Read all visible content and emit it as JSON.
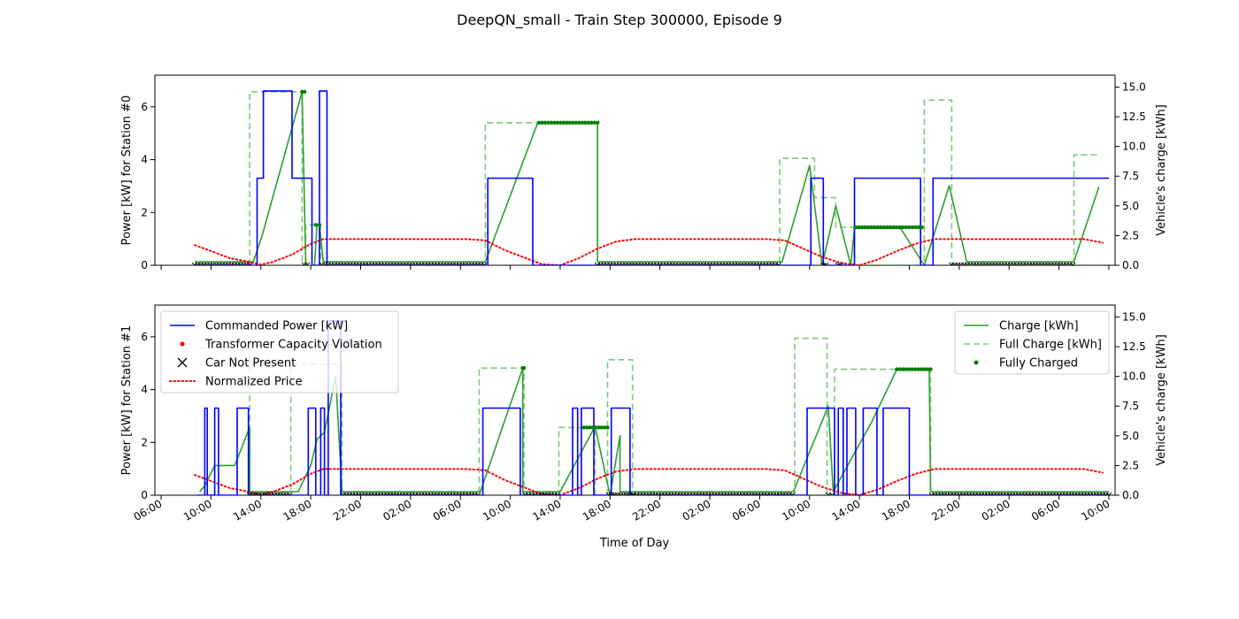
{
  "figure": {
    "title": "DeepQN_small - Train Step 300000, Episode 9",
    "xlabel": "Time of Day"
  },
  "chart_data": [
    {
      "type": "line",
      "ylabel": "Power [kW] for Station #0",
      "ylabel_right": "Vehicle's charge [kWh]",
      "ylim": [
        0,
        7.2
      ],
      "ylim_right": [
        0,
        16
      ],
      "yticks": [
        0,
        2,
        4,
        6
      ],
      "yticks_right": [
        0,
        2.5,
        5.0,
        7.5,
        10.0,
        12.5,
        15.0
      ],
      "x_unit": "hours since 06:00 of day 1",
      "xlim": [
        -0.5,
        76.5
      ],
      "xticks": [
        0,
        4,
        8,
        12,
        16,
        20,
        24,
        28,
        32,
        36,
        40,
        44,
        48,
        52,
        56,
        60,
        64,
        68,
        72,
        76
      ],
      "xtick_labels": [
        "06:00",
        "10:00",
        "14:00",
        "18:00",
        "22:00",
        "02:00",
        "06:00",
        "10:00",
        "14:00",
        "18:00",
        "22:00",
        "02:00",
        "06:00",
        "10:00",
        "14:00",
        "18:00",
        "22:00",
        "02:00",
        "06:00",
        "10:00"
      ],
      "series": [
        {
          "name": "Commanded Power [kW]",
          "axis": "left",
          "color": "#0000ff",
          "style": "solid",
          "step": true,
          "x": [
            2.7,
            7.3,
            7.7,
            8.2,
            9.5,
            10.5,
            11.5,
            12.1,
            12.2,
            12.4,
            12.7,
            12.9,
            13.3,
            13.6,
            26.2,
            29.8,
            52.1,
            53.1,
            55.6,
            56.0,
            56.6,
            60.9,
            61.9,
            63.9,
            76.0
          ],
          "y": [
            0,
            0,
            3.3,
            6.6,
            6.6,
            3.3,
            3.3,
            0,
            0,
            0,
            6.6,
            6.6,
            0,
            0,
            3.3,
            0,
            3.3,
            0,
            3.3,
            3.3,
            3.3,
            0,
            3.3,
            3.3,
            3.3
          ]
        },
        {
          "name": "Charge [kWh]",
          "axis": "right",
          "color": "#2ca02c",
          "style": "solid",
          "x": [
            2.7,
            7.4,
            8.1,
            11.3,
            11.3,
            11.6,
            12.3,
            12.5,
            12.7,
            13.0,
            26.0,
            30.2,
            35.0,
            35.0,
            49.8,
            52.0,
            53.0,
            54.1,
            55.3,
            55.6,
            55.6,
            59.3,
            61.2,
            63.2,
            64.6,
            73.2,
            75.2
          ],
          "y": [
            0.3,
            0.3,
            2.5,
            14.6,
            14.6,
            0,
            0,
            3.4,
            3.4,
            0.3,
            0.3,
            12,
            12,
            0.3,
            0.3,
            8.4,
            0,
            5.0,
            0,
            3.1,
            3.1,
            3.1,
            0,
            6.7,
            0.3,
            0.3,
            6.6
          ]
        },
        {
          "name": "Full Charge [kWh]",
          "axis": "right",
          "color": "#2ca02c",
          "style": "dashed",
          "alpha": 0.6,
          "x": [
            7.1,
            7.1,
            11.3,
            11.3,
            11.6,
            11.6,
            12.8,
            12.8,
            26.0,
            26.0,
            35.0,
            35.0,
            49.6,
            49.6,
            52.4,
            52.4,
            54.1,
            54.1,
            55.6,
            55.6,
            61.2,
            61.2,
            63.4,
            63.4,
            73.2,
            73.2,
            75.3
          ],
          "y": [
            0,
            14.6,
            14.6,
            0,
            0,
            3.4,
            3.4,
            0,
            0,
            12,
            12,
            0,
            0,
            9.0,
            9.0,
            5.7,
            5.7,
            3.2,
            3.2,
            0,
            0,
            13.9,
            13.9,
            0,
            0,
            9.3,
            9.3
          ]
        },
        {
          "name": "Fully Charged",
          "axis": "right",
          "color": "#008000",
          "style": "dots",
          "segments": [
            [
              11.3,
              11.5,
              14.6
            ],
            [
              12.4,
              12.7,
              3.4
            ],
            [
              30.3,
              35.0,
              12.0
            ],
            [
              55.7,
              61.0,
              3.2
            ]
          ]
        },
        {
          "name": "Car Not Present",
          "axis": "right",
          "color": "#000000",
          "style": "x",
          "segments": [
            [
              2.7,
              7.1,
              0
            ],
            [
              11.5,
              11.7,
              0
            ],
            [
              12.9,
              25.9,
              0
            ],
            [
              35.0,
              49.5,
              0
            ],
            [
              53.1,
              53.3,
              0
            ],
            [
              54.3,
              54.5,
              0
            ],
            [
              63.4,
              73.1,
              0
            ]
          ]
        },
        {
          "name": "Normalized Price",
          "axis": "right",
          "color": "#ff0000",
          "style": "dotted",
          "dotted_line": true,
          "x": [
            2.7,
            4.0,
            5.5,
            7.0,
            8.0,
            9.0,
            10.5,
            12.0,
            13.0,
            24.5,
            26.0,
            27.5,
            29.0,
            30.5,
            32.0,
            33.5,
            35.0,
            36.5,
            38.0,
            48.5,
            50.0,
            51.5,
            53.0,
            54.5,
            56.0,
            57.5,
            59.0,
            60.5,
            62.0,
            74.0,
            75.5
          ],
          "y": [
            1.7,
            1.2,
            0.6,
            0.3,
            0.05,
            0.3,
            0.9,
            1.8,
            2.2,
            2.2,
            2.1,
            1.3,
            0.7,
            0.1,
            0,
            0.6,
            1.4,
            2.0,
            2.2,
            2.2,
            2.1,
            1.4,
            0.7,
            0.2,
            0,
            0.5,
            1.2,
            1.8,
            2.2,
            2.2,
            1.9
          ]
        }
      ]
    },
    {
      "type": "line",
      "ylabel": "Power [kW] for Station #1",
      "ylabel_right": "Vehicle's charge [kWh]",
      "ylim": [
        0,
        7.2
      ],
      "ylim_right": [
        0,
        16
      ],
      "yticks": [
        0,
        2,
        4,
        6
      ],
      "yticks_right": [
        0,
        2.5,
        5.0,
        7.5,
        10.0,
        12.5,
        15.0
      ],
      "x_unit": "hours since 06:00 of day 1",
      "xlim": [
        -0.5,
        76.5
      ],
      "xticks": [
        0,
        4,
        8,
        12,
        16,
        20,
        24,
        28,
        32,
        36,
        40,
        44,
        48,
        52,
        56,
        60,
        64,
        68,
        72,
        76
      ],
      "xtick_labels": [
        "06:00",
        "10:00",
        "14:00",
        "18:00",
        "22:00",
        "02:00",
        "06:00",
        "10:00",
        "14:00",
        "18:00",
        "22:00",
        "02:00",
        "06:00",
        "10:00",
        "14:00",
        "18:00",
        "22:00",
        "02:00",
        "06:00",
        "10:00"
      ],
      "series": [
        {
          "name": "Commanded Power [kW]",
          "axis": "left",
          "color": "#0000ff",
          "style": "solid",
          "step": true,
          "x": [
            2.9,
            3.5,
            3.7,
            4.0,
            4.3,
            4.6,
            6.0,
            6.1,
            7.0,
            11.2,
            11.8,
            12.4,
            12.6,
            12.8,
            13.1,
            13.4,
            14.4,
            25.8,
            28.8,
            32.7,
            33.0,
            33.4,
            33.7,
            34.7,
            36.1,
            37.6,
            51.8,
            54.0,
            54.3,
            54.7,
            55.0,
            55.7,
            56.3,
            57.4,
            57.9,
            59.1,
            60.0,
            76.0
          ],
          "y": [
            0,
            3.3,
            0,
            0,
            3.3,
            0,
            0,
            3.3,
            0,
            0,
            3.3,
            0,
            0,
            3.3,
            0,
            6.6,
            0,
            3.3,
            0,
            0,
            3.3,
            0,
            3.3,
            0,
            3.3,
            0,
            3.3,
            0,
            3.3,
            0,
            3.3,
            0,
            3.3,
            0,
            3.3,
            3.3,
            0,
            0
          ]
        },
        {
          "name": "Charge [kWh]",
          "axis": "right",
          "color": "#2ca02c",
          "style": "solid",
          "x": [
            3.1,
            3.5,
            4.3,
            5.9,
            7.1,
            7.1,
            11.0,
            12.0,
            12.5,
            13.1,
            14.0,
            14.5,
            25.6,
            29.0,
            29.0,
            32.0,
            34.8,
            36.0,
            36.8,
            36.8,
            50.7,
            53.5,
            53.9,
            57.0,
            59.0,
            61.6,
            61.7,
            76.0
          ],
          "y": [
            0.3,
            0.8,
            2.5,
            2.5,
            5.7,
            0.3,
            0.3,
            2.5,
            4.7,
            5.3,
            10.0,
            0.3,
            0.3,
            10.7,
            0.3,
            0.3,
            5.8,
            0,
            5.0,
            0.3,
            0.3,
            7.5,
            0.3,
            6.2,
            10.6,
            10.6,
            0.3,
            0.3
          ]
        },
        {
          "name": "Full Charge [kWh]",
          "axis": "right",
          "color": "#2ca02c",
          "style": "dashed",
          "alpha": 0.6,
          "x": [
            3.1,
            7.1,
            7.1,
            10.4,
            10.4,
            14.5,
            14.5,
            25.5,
            25.5,
            29.1,
            29.1,
            31.9,
            31.9,
            34.8,
            34.8,
            35.8,
            35.8,
            37.8,
            37.8,
            50.8,
            50.8,
            53.4,
            53.4,
            54.0,
            54.0,
            61.7,
            61.7,
            76.0
          ],
          "y": [
            12.4,
            12.4,
            0,
            0,
            11.0,
            11.0,
            0,
            0,
            10.7,
            10.7,
            0,
            0,
            5.7,
            5.7,
            0,
            0,
            11.4,
            11.4,
            0,
            0,
            13.2,
            13.2,
            0,
            0,
            10.6,
            10.6,
            0,
            0
          ]
        },
        {
          "name": "Fully Charged",
          "axis": "right",
          "color": "#008000",
          "style": "dots",
          "segments": [
            [
              29.0,
              29.1,
              10.7
            ],
            [
              33.9,
              35.8,
              5.7
            ],
            [
              59.0,
              61.7,
              10.6
            ]
          ]
        },
        {
          "name": "Car Not Present",
          "axis": "right",
          "color": "#000000",
          "style": "x",
          "segments": [
            [
              7.1,
              10.3,
              0
            ],
            [
              14.6,
              25.4,
              0
            ],
            [
              29.2,
              31.8,
              0
            ],
            [
              35.9,
              37.8,
              0
            ],
            [
              37.9,
              50.6,
              0
            ],
            [
              53.5,
              53.8,
              0
            ],
            [
              61.8,
              76.0,
              0
            ]
          ]
        },
        {
          "name": "Normalized Price",
          "axis": "right",
          "color": "#ff0000",
          "style": "dotted",
          "dotted_line": true,
          "x": [
            2.7,
            4.0,
            5.5,
            7.0,
            8.0,
            9.0,
            10.5,
            12.0,
            13.0,
            24.5,
            26.0,
            27.5,
            29.0,
            30.5,
            32.0,
            33.5,
            35.0,
            36.5,
            38.0,
            48.5,
            50.0,
            51.5,
            53.0,
            54.5,
            56.0,
            57.5,
            59.0,
            60.5,
            62.0,
            74.0,
            75.5
          ],
          "y": [
            1.7,
            1.2,
            0.6,
            0.3,
            0.05,
            0.3,
            0.9,
            1.8,
            2.2,
            2.2,
            2.1,
            1.3,
            0.7,
            0.1,
            0,
            0.6,
            1.4,
            2.0,
            2.2,
            2.2,
            2.1,
            1.4,
            0.7,
            0.2,
            0,
            0.5,
            1.2,
            1.8,
            2.2,
            2.2,
            1.9
          ]
        }
      ],
      "legend_left": {
        "placement": "upper-left",
        "entries": [
          {
            "label": "Commanded Power [kW]",
            "marker": "line",
            "color": "#0000ff"
          },
          {
            "label": "Transformer Capacity Violation",
            "marker": "dot",
            "color": "#ff0000"
          },
          {
            "label": "Car Not Present",
            "marker": "x",
            "color": "#000000"
          },
          {
            "label": "Normalized Price",
            "marker": "dotted",
            "color": "#ff0000"
          }
        ]
      },
      "legend_right": {
        "placement": "upper-right",
        "entries": [
          {
            "label": "Charge [kWh]",
            "marker": "line",
            "color": "#2ca02c"
          },
          {
            "label": "Full Charge [kWh]",
            "marker": "dashed",
            "color": "#2ca02c"
          },
          {
            "label": "Fully Charged",
            "marker": "dot",
            "color": "#008000"
          }
        ]
      }
    }
  ]
}
